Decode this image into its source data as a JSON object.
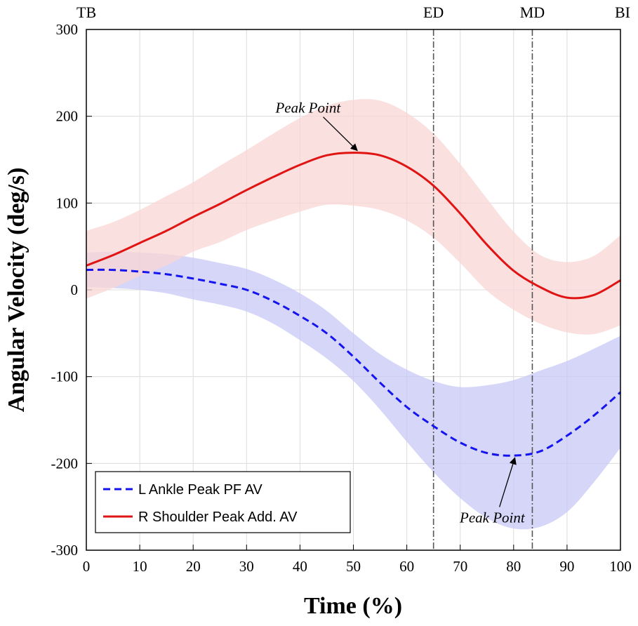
{
  "chart_data": {
    "type": "line",
    "title": "",
    "xlabel": "Time (%)",
    "ylabel": "Angular Velocity (deg/s)",
    "xlim": [
      0,
      100
    ],
    "ylim": [
      -300,
      300
    ],
    "x_ticks": [
      "0",
      "10",
      "20",
      "30",
      "40",
      "50",
      "60",
      "70",
      "80",
      "90",
      "100"
    ],
    "y_ticks": [
      "300",
      "200",
      "100",
      "0",
      "-100",
      "-200",
      "-300"
    ],
    "grid": true,
    "legend_position": "bottom-left",
    "x": [
      0,
      5,
      10,
      15,
      20,
      25,
      30,
      35,
      40,
      45,
      50,
      55,
      60,
      65,
      70,
      75,
      80,
      85,
      90,
      95,
      100
    ],
    "series": [
      {
        "name": "L Ankle Peak PF AV",
        "color": "#1414f0",
        "band_color": "#c8c8f5",
        "style": "dashed",
        "values": [
          23,
          23,
          21,
          18,
          13,
          7,
          0,
          -13,
          -30,
          -50,
          -77,
          -107,
          -135,
          -157,
          -176,
          -188,
          -191,
          -186,
          -168,
          -145,
          -118
        ],
        "band_upper": [
          43,
          44,
          43,
          41,
          37,
          31,
          24,
          12,
          -4,
          -24,
          -50,
          -74,
          -92,
          -105,
          -112,
          -110,
          -104,
          -93,
          -82,
          -68,
          -53
        ],
        "band_lower": [
          3,
          2,
          0,
          -4,
          -11,
          -17,
          -25,
          -39,
          -58,
          -79,
          -105,
          -138,
          -175,
          -210,
          -240,
          -263,
          -275,
          -273,
          -256,
          -222,
          -182
        ]
      },
      {
        "name": "R Shoulder Peak Add. AV",
        "color": "#e11414",
        "band_color": "#f9d6d6",
        "style": "solid",
        "values": [
          28,
          40,
          54,
          68,
          84,
          99,
          115,
          130,
          144,
          155,
          158,
          155,
          142,
          120,
          88,
          52,
          22,
          3,
          -9,
          -6,
          11
        ],
        "band_upper": [
          68,
          78,
          92,
          108,
          124,
          143,
          161,
          180,
          198,
          212,
          219,
          218,
          204,
          180,
          145,
          105,
          67,
          40,
          32,
          39,
          63
        ],
        "band_lower": [
          -10,
          2,
          16,
          28,
          44,
          55,
          69,
          80,
          90,
          98,
          97,
          92,
          80,
          60,
          31,
          -1,
          -23,
          -39,
          -49,
          -51,
          -41
        ]
      }
    ],
    "event_lines": [
      {
        "label": "TB",
        "x": 0
      },
      {
        "label": "ED",
        "x": 65
      },
      {
        "label": "MD",
        "x": 83.5
      },
      {
        "label": "BI",
        "x": 100
      }
    ],
    "annotations": [
      {
        "text": "Peak Point",
        "series": "R Shoulder Peak Add. AV",
        "point_x": 51,
        "point_y": 158,
        "text_x": 41.5,
        "text_y": 204
      },
      {
        "text": "Peak Point",
        "series": "L Ankle Peak PF AV",
        "point_x": 80.5,
        "point_y": -191,
        "text_x": 76,
        "text_y": -268
      }
    ]
  }
}
